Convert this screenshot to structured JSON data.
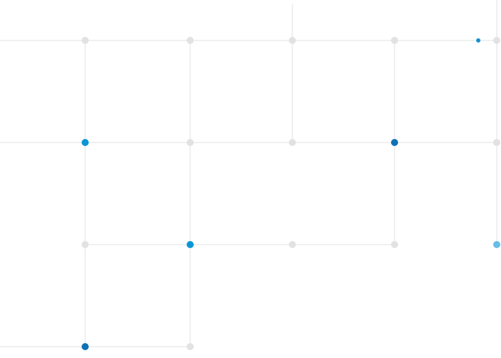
{
  "colors": {
    "background": "#ffffff",
    "grid_line": "#e6e6e6",
    "node_inactive": "#e2e2e2",
    "node_active": "#1390d0",
    "node_dark": "#0f72b4",
    "node_light": "#66bde7",
    "node_bright": "#0a96d6"
  },
  "network": {
    "rows": [
      {
        "row": "top",
        "nodes": [
          {
            "col": 1,
            "state": "inactive"
          },
          {
            "col": 2,
            "state": "inactive"
          },
          {
            "col": 3,
            "state": "inactive"
          },
          {
            "col": 4,
            "state": "inactive"
          },
          {
            "col": "4.8",
            "state": "active-small"
          },
          {
            "col": 5,
            "state": "inactive"
          }
        ]
      },
      {
        "row": "second",
        "nodes": [
          {
            "col": 1,
            "state": "bright"
          },
          {
            "col": 2,
            "state": "inactive"
          },
          {
            "col": 3,
            "state": "inactive"
          },
          {
            "col": 4,
            "state": "active"
          },
          {
            "col": 5,
            "state": "inactive"
          }
        ]
      },
      {
        "row": "third",
        "nodes": [
          {
            "col": 1,
            "state": "inactive"
          },
          {
            "col": 2,
            "state": "bright"
          },
          {
            "col": 3,
            "state": "inactive"
          },
          {
            "col": 4,
            "state": "inactive"
          },
          {
            "col": 5,
            "state": "light"
          }
        ]
      },
      {
        "row": "bottom",
        "nodes": [
          {
            "col": 1,
            "state": "dark"
          },
          {
            "col": 2,
            "state": "inactive"
          }
        ]
      }
    ]
  }
}
